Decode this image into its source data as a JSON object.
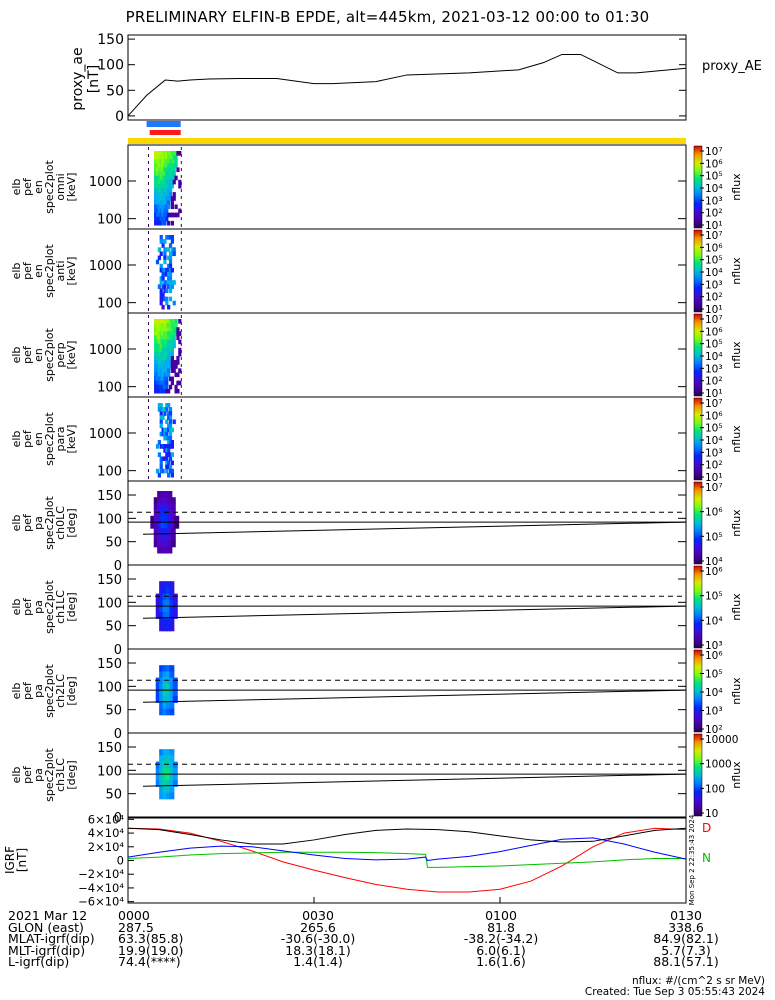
{
  "title": "PRELIMINARY ELFIN-B EPDE, alt=445km, 2021-03-12 00:00 to 01:30",
  "colors": {
    "sci_blue": "#1e78ff",
    "sci_red": "#ff1a1a",
    "orbit_bar": "#ffd700",
    "bx": "#ff0000",
    "by": "#00c000",
    "bz": "#0000ff"
  },
  "chart_data": [
    {
      "type": "line",
      "name": "proxy_ae",
      "ylabel": "proxy_ae\n[nT]",
      "legend": "proxy_AE",
      "ylim": [
        -8,
        158
      ],
      "yticks": [
        0,
        50,
        100,
        150
      ],
      "x_minutes": [
        0,
        3,
        6,
        8,
        10,
        13,
        18,
        24,
        30,
        33,
        40,
        45,
        55,
        63,
        67,
        70,
        73,
        75,
        79,
        82,
        90
      ],
      "values": [
        0,
        40,
        70,
        68,
        70,
        72,
        73,
        73,
        63,
        63,
        67,
        80,
        84,
        90,
        104,
        120,
        120,
        108,
        84,
        84,
        93
      ]
    },
    {
      "type": "heatmap",
      "ylabel": "elb\npef\nen\nspec2plot\nomni\n[keV]",
      "yticks": [
        "1000",
        "100"
      ],
      "zlabel": "nflux",
      "zticks": [
        "10⁷",
        "10⁶",
        "10⁵",
        "10⁴",
        "10³",
        "10²",
        "10¹"
      ]
    },
    {
      "type": "heatmap",
      "ylabel": "elb\npef\nen\nspec2plot\nanti\n[keV]",
      "yticks": [
        "1000",
        "100"
      ],
      "zlabel": "nflux",
      "zticks": [
        "10⁷",
        "10⁶",
        "10⁵",
        "10⁴",
        "10³",
        "10²",
        "10¹"
      ]
    },
    {
      "type": "heatmap",
      "ylabel": "elb\npef\nen\nspec2plot\nperp\n[keV]",
      "yticks": [
        "1000",
        "100"
      ],
      "zlabel": "nflux",
      "zticks": [
        "10⁷",
        "10⁶",
        "10⁵",
        "10⁴",
        "10³",
        "10²",
        "10¹"
      ]
    },
    {
      "type": "heatmap",
      "ylabel": "elb\npef\nen\nspec2plot\npara\n[keV]",
      "yticks": [
        "1000",
        "100"
      ],
      "zlabel": "nflux",
      "zticks": [
        "10⁷",
        "10⁶",
        "10⁵",
        "10⁴",
        "10³",
        "10²",
        "10¹"
      ]
    },
    {
      "type": "heatmap",
      "ylabel": "elb\npef\npa\nspec2plot\nch0LC\n[deg]",
      "yticks": [
        "150",
        "100",
        "50",
        "0"
      ],
      "zlabel": "nflux",
      "zticks": [
        "10⁷",
        "10⁶",
        "10⁵",
        "10⁴"
      ]
    },
    {
      "type": "heatmap",
      "ylabel": "elb\npef\npa\nspec2plot\nch1LC\n[deg]",
      "yticks": [
        "150",
        "100",
        "50",
        "0"
      ],
      "zlabel": "nflux",
      "zticks": [
        "10⁶",
        "10⁵",
        "10⁴",
        "10³"
      ]
    },
    {
      "type": "heatmap",
      "ylabel": "elb\npef\npa\nspec2plot\nch2LC\n[deg]",
      "yticks": [
        "150",
        "100",
        "50",
        "0"
      ],
      "zlabel": "nflux",
      "zticks": [
        "10⁶",
        "10⁵",
        "10⁴",
        "10³",
        "10²"
      ]
    },
    {
      "type": "heatmap",
      "ylabel": "elb\npef\npa\nspec2plot\nch3LC\n[deg]",
      "yticks": [
        "150",
        "100",
        "50",
        "0"
      ],
      "zlabel": "nflux",
      "zticks": [
        "10000",
        "1000",
        "100",
        "10"
      ]
    },
    {
      "type": "line",
      "name": "igrf",
      "ylabel": "IGRF\n[nT]",
      "ylim": [
        -62000,
        62000
      ],
      "yticks": [
        "6×10⁴",
        "4×10⁴",
        "2×10⁴",
        "0",
        "−2×10⁴",
        "−4×10⁴",
        "−6×10⁴"
      ],
      "side_note": "Mon Sep  2 22:35:43 2024",
      "series": [
        {
          "name": "D",
          "x_minutes": [
            0,
            5,
            10,
            15,
            20,
            25,
            30,
            35,
            40,
            45,
            50,
            55,
            60,
            65,
            70,
            75,
            80,
            85,
            90
          ],
          "values": [
            47000,
            46000,
            40000,
            28000,
            14000,
            -2000,
            -14000,
            -25000,
            -35000,
            -42000,
            -46000,
            -46000,
            -42000,
            -30000,
            -8000,
            20000,
            40000,
            47000,
            45000
          ]
        },
        {
          "name": "N",
          "x_minutes": [
            0,
            5,
            10,
            15,
            20,
            25,
            30,
            35,
            40,
            45,
            48,
            48.3,
            50,
            55,
            60,
            65,
            70,
            75,
            80,
            85,
            90
          ],
          "values": [
            3000,
            5000,
            8000,
            10000,
            11000,
            12000,
            12000,
            12000,
            11500,
            10000,
            9000,
            -10000,
            -10000,
            -9000,
            -8000,
            -6000,
            -4000,
            -2000,
            1000,
            3000,
            3000
          ]
        },
        {
          "name": "",
          "x_minutes": [
            0,
            5,
            10,
            15,
            20,
            25,
            30,
            35,
            40,
            45,
            48,
            48.3,
            50,
            55,
            60,
            65,
            70,
            75,
            80,
            85,
            90
          ],
          "values": [
            5000,
            12000,
            18000,
            21000,
            20000,
            14000,
            8000,
            3000,
            1000,
            2000,
            5000,
            0,
            2000,
            6000,
            13000,
            22000,
            31000,
            33000,
            24000,
            12000,
            2000
          ]
        },
        {
          "name": "",
          "x_minutes": [
            0,
            5,
            10,
            15,
            20,
            25,
            30,
            35,
            40,
            45,
            50,
            55,
            60,
            65,
            70,
            75,
            80,
            85,
            90
          ],
          "values": [
            47000,
            45000,
            38000,
            30000,
            24000,
            24000,
            30000,
            38000,
            44000,
            46000,
            45000,
            42000,
            36000,
            30000,
            27000,
            28000,
            36000,
            44000,
            47000
          ]
        }
      ]
    }
  ],
  "science_zones": {
    "blue": [
      3,
      8.5
    ],
    "red": [
      3.5,
      8.5
    ]
  },
  "xaxis": {
    "rows": [
      {
        "label": "2021 Mar 12",
        "values": [
          "0000",
          "0030",
          "0100",
          "0130"
        ]
      },
      {
        "label": "GLON (east)",
        "values": [
          "287.5",
          "265.6",
          "81.8",
          "338.6"
        ]
      },
      {
        "label": "MLAT-igrf(dip)",
        "values": [
          "63.3(85.8)",
          "-30.6(-30.0)",
          "-38.2(-34.2)",
          "84.9(82.1)"
        ]
      },
      {
        "label": "MLT-igrf(dip)",
        "values": [
          "19.9(19.0)",
          "18.3(18.1)",
          "6.0(6.1)",
          "5.7(7.3)"
        ]
      },
      {
        "label": "L-igrf(dip)",
        "values": [
          "74.4(****)",
          "1.4(1.4)",
          "1.6(1.6)",
          "88.1(57.1)"
        ]
      }
    ]
  },
  "units_note": "nflux: #/(cm^2 s sr MeV)",
  "created": "Created: Tue Sep  3 05:55:43 2024"
}
